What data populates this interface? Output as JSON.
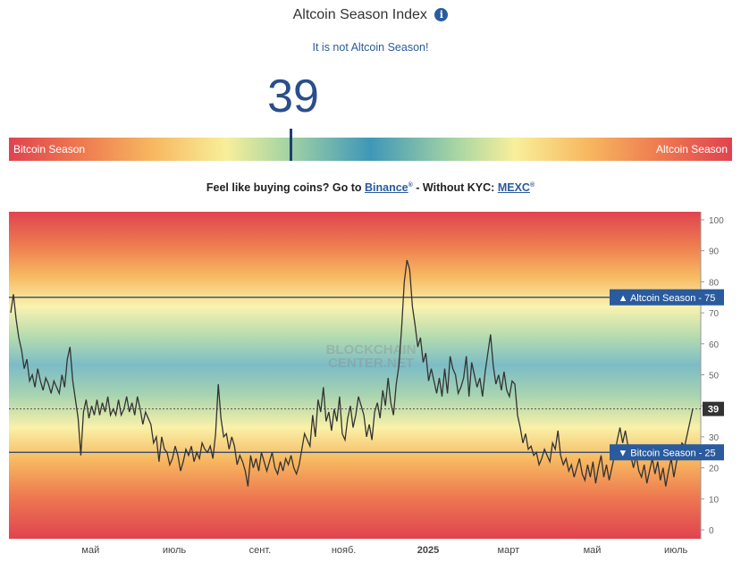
{
  "header": {
    "title": "Altcoin Season Index",
    "info_icon": "i",
    "status": "It is not Altcoin Season!",
    "value": "39"
  },
  "gauge": {
    "left_label": "Bitcoin Season",
    "right_label": "Altcoin Season",
    "value": 39
  },
  "promo": {
    "prefix": "Feel like buying coins? Go to ",
    "link1": "Binance",
    "middle": " - Without KYC: ",
    "link2": "MEXC",
    "mark": "®"
  },
  "watermark": [
    "BLOCKCHAIN",
    "CENTER.NET"
  ],
  "chart_data": {
    "type": "line",
    "ylim": [
      0,
      100
    ],
    "yticks": [
      0,
      10,
      20,
      30,
      40,
      50,
      60,
      70,
      80,
      90,
      100
    ],
    "xticks": [
      {
        "label": "май",
        "t": 0.118
      },
      {
        "label": "июль",
        "t": 0.239
      },
      {
        "label": "сент.",
        "t": 0.363
      },
      {
        "label": "нояб.",
        "t": 0.484
      },
      {
        "label": "2025",
        "t": 0.606
      },
      {
        "label": "март",
        "t": 0.722
      },
      {
        "label": "май",
        "t": 0.843
      },
      {
        "label": "июль",
        "t": 0.964
      }
    ],
    "thresholds": [
      {
        "label": "▲ Altcoin Season",
        "value": 75
      },
      {
        "label": "▼ Bitcoin Season",
        "value": 25
      }
    ],
    "current": {
      "label": "39",
      "value": 39
    },
    "series": [
      {
        "values": [
          70,
          76,
          68,
          62,
          58,
          52,
          55,
          48,
          50,
          46,
          52,
          48,
          45,
          49,
          47,
          44,
          48,
          46,
          44,
          50,
          46,
          55,
          59,
          48,
          42,
          36,
          24,
          38,
          42,
          36,
          40,
          37,
          42,
          37,
          41,
          38,
          43,
          37,
          39,
          37,
          42,
          37,
          39,
          43,
          38,
          41,
          37,
          43,
          39,
          34,
          38,
          36,
          34,
          28,
          30,
          22,
          30,
          26,
          25,
          21,
          23,
          27,
          24,
          19,
          22,
          26,
          24,
          27,
          22,
          25,
          23,
          28,
          26,
          25,
          27,
          23,
          31,
          47,
          36,
          30,
          31,
          26,
          30,
          27,
          21,
          24,
          22,
          19,
          14,
          24,
          20,
          23,
          19,
          25,
          22,
          19,
          22,
          25,
          20,
          18,
          22,
          19,
          23,
          21,
          24,
          20,
          18,
          21,
          26,
          31,
          29,
          27,
          37,
          30,
          42,
          38,
          46,
          35,
          38,
          32,
          39,
          35,
          43,
          31,
          29,
          36,
          40,
          33,
          37,
          43,
          40,
          37,
          30,
          34,
          29,
          38,
          41,
          36,
          45,
          40,
          49,
          41,
          37,
          47,
          53,
          65,
          80,
          87,
          84,
          72,
          66,
          59,
          62,
          54,
          57,
          48,
          52,
          48,
          44,
          49,
          43,
          52,
          44,
          56,
          52,
          50,
          44,
          46,
          49,
          56,
          43,
          54,
          50,
          46,
          49,
          43,
          51,
          57,
          63,
          53,
          47,
          50,
          45,
          51,
          45,
          43,
          48,
          47,
          37,
          33,
          28,
          31,
          26,
          27,
          24,
          25,
          21,
          23,
          26,
          24,
          22,
          28,
          26,
          32,
          24,
          21,
          23,
          19,
          21,
          17,
          20,
          23,
          18,
          16,
          21,
          17,
          22,
          15,
          20,
          24,
          17,
          21,
          16,
          20,
          24,
          29,
          33,
          28,
          32,
          27,
          24,
          20,
          24,
          19,
          17,
          21,
          15,
          19,
          23,
          18,
          22,
          16,
          20,
          14,
          19,
          23,
          17,
          22,
          25,
          28,
          27,
          31,
          35,
          39
        ]
      }
    ]
  }
}
